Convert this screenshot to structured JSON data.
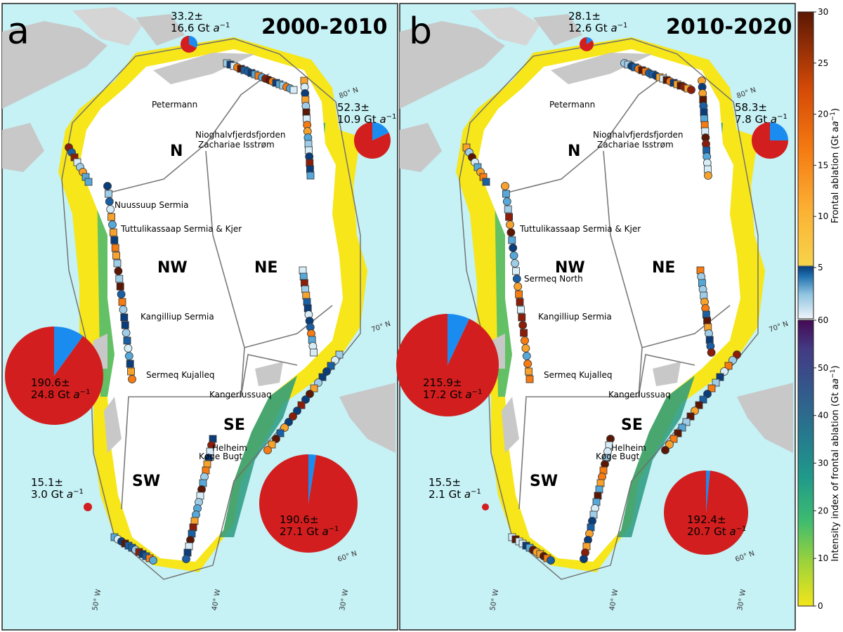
{
  "panels": [
    {
      "letter": "a",
      "period": "2000-2010",
      "regions": {
        "N": "N",
        "NE": "NE",
        "NW": "NW",
        "SE": "SE",
        "SW": "SW"
      },
      "glaciers": [
        "Petermann",
        "Nioghalvfjerdsfjorden",
        "Zachariae Isstrøm",
        "Nuussuup Sermia",
        "Tuttulikassaap Sermia & Kjer",
        "Kangilliup Sermia",
        "Sermeq Kujalleq",
        "Kangerlussuaq",
        "Helheim",
        "Køge Bugt"
      ],
      "pies": [
        {
          "region": "N",
          "value": "33.2±",
          "err": "16.6 Gt",
          "red_fraction": 0.68
        },
        {
          "region": "NE",
          "value": "52.3±",
          "err": "10.9 Gt",
          "red_fraction": 0.82
        },
        {
          "region": "NW",
          "value": "190.6±",
          "err": "24.8 Gt",
          "red_fraction": 0.9
        },
        {
          "region": "SW",
          "value": "15.1±",
          "err": "3.0 Gt",
          "red_fraction": 1.0
        },
        {
          "region": "SE",
          "value": "190.6±",
          "err": "27.1 Gt",
          "red_fraction": 0.975
        }
      ],
      "lat_labels": [
        "80° N",
        "70° N",
        "60° N"
      ],
      "lon_labels": [
        "50° W",
        "40° W",
        "30° W"
      ]
    },
    {
      "letter": "b",
      "period": "2010-2020",
      "regions": {
        "N": "N",
        "NE": "NE",
        "NW": "NW",
        "SE": "SE",
        "SW": "SW"
      },
      "glaciers": [
        "Petermann",
        "Nioghalvfjerdsfjorden",
        "Zachariae Isstrøm",
        "Tuttulikassaap Sermia & Kjer",
        "Sermeq North",
        "Kangilliup Sermia",
        "Sermeq Kujalleq",
        "Kangerlussuaq",
        "Helheim",
        "Køge Bugt"
      ],
      "pies": [
        {
          "region": "N",
          "value": "28.1±",
          "err": "12.6 Gt",
          "red_fraction": 0.85
        },
        {
          "region": "NE",
          "value": "58.3±",
          "err": "7.8 Gt",
          "red_fraction": 0.75
        },
        {
          "region": "NW",
          "value": "215.9±",
          "err": "17.2 Gt",
          "red_fraction": 0.93
        },
        {
          "region": "SW",
          "value": "15.5±",
          "err": "2.1 Gt",
          "red_fraction": 1.0
        },
        {
          "region": "SE",
          "value": "192.4±",
          "err": "20.7 Gt",
          "red_fraction": 0.985
        }
      ],
      "lat_labels": [
        "80° N",
        "70° N",
        "60° N"
      ],
      "lon_labels": [
        "50° W",
        "40° W",
        "30° W"
      ]
    }
  ],
  "unit_suffix": "a",
  "colorbar_top": {
    "label": "Frontal ablation (Gt a",
    "ticks": [
      "30",
      "25",
      "20",
      "15",
      "10",
      "5"
    ],
    "range": [
      0,
      30
    ]
  },
  "colorbar_bottom": {
    "label": "Intensity index of frontal ablation (Gt a",
    "ticks": [
      "60",
      "50",
      "40",
      "30",
      "20",
      "10",
      "0"
    ],
    "range": [
      0,
      60
    ]
  },
  "colors": {
    "ocean": "#c6f1f5",
    "land": "#c8c8c8",
    "ice": "#ffffff",
    "red": "#d21e1e",
    "blue": "#1a8cf0",
    "yellow": "#f6e61a"
  }
}
